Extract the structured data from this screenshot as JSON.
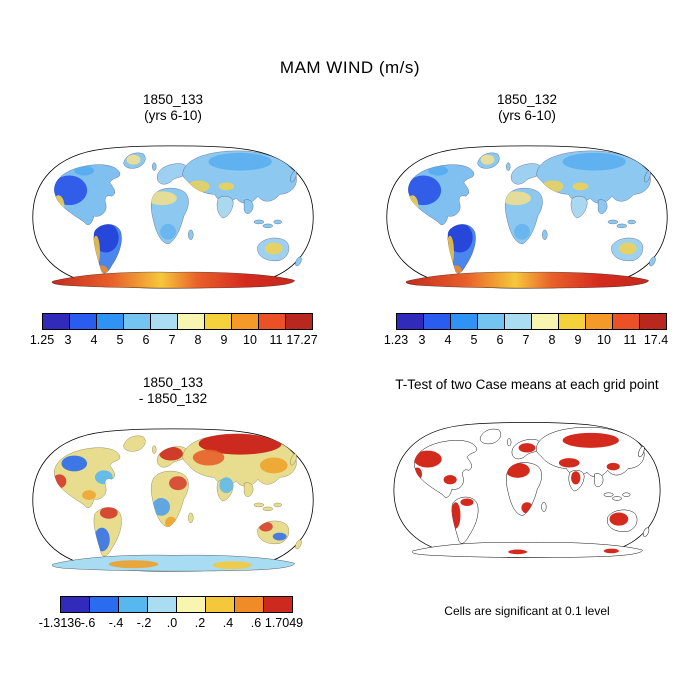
{
  "title": "MAM WIND (m/s)",
  "panels": {
    "case1": {
      "title_line1": "1850_133",
      "title_line2": "(yrs 6-10)"
    },
    "case2": {
      "title_line1": "1850_132",
      "title_line2": "(yrs 6-10)"
    },
    "diff": {
      "title_line1": "1850_133",
      "title_line2": "- 1850_132"
    },
    "ttest": {
      "title": "T-Test of two Case means at each grid point",
      "caption": "Cells are significant at 0.1 level"
    }
  },
  "colorbars": {
    "case1": {
      "colors": [
        "#312aba",
        "#2a5cf0",
        "#2e93f5",
        "#74c4f2",
        "#aadcf2",
        "#f7f5b0",
        "#f5d23c",
        "#f59a28",
        "#eb5026",
        "#b8281e"
      ],
      "labels": [
        "1.25",
        "3",
        "4",
        "5",
        "6",
        "7",
        "8",
        "9",
        "10",
        "11",
        "17.27"
      ]
    },
    "case2": {
      "colors": [
        "#312aba",
        "#2a5cf0",
        "#2e93f5",
        "#74c4f2",
        "#aadcf2",
        "#f7f5b0",
        "#f5d23c",
        "#f59a28",
        "#eb5026",
        "#b8281e"
      ],
      "labels": [
        "1.23",
        "3",
        "4",
        "5",
        "6",
        "7",
        "8",
        "9",
        "10",
        "11",
        "17.4"
      ]
    },
    "diff": {
      "colors": [
        "#312aba",
        "#2a6cf0",
        "#57b8f0",
        "#aadcf2",
        "#f7f5b0",
        "#f5c83c",
        "#f08c28",
        "#cc2a1e"
      ],
      "labels": [
        "-1.3136",
        "-.6",
        "-.4",
        "-.2",
        ".0",
        ".2",
        ".4",
        ".6",
        "1.7049"
      ]
    }
  },
  "chart_data": [
    {
      "type": "heatmap",
      "subtype": "global-map",
      "projection": "robinson",
      "title": "1850_133 (yrs 6-10)",
      "variable": "MAM WIND",
      "units": "m/s",
      "min": 1.25,
      "max": 17.27,
      "levels": [
        3,
        4,
        5,
        6,
        7,
        8,
        9,
        10,
        11
      ],
      "palette": [
        "#312aba",
        "#2a5cf0",
        "#2e93f5",
        "#74c4f2",
        "#aadcf2",
        "#f7f5b0",
        "#f5d23c",
        "#f59a28",
        "#eb5026",
        "#b8281e"
      ],
      "legend_position": "bottom"
    },
    {
      "type": "heatmap",
      "subtype": "global-map",
      "projection": "robinson",
      "title": "1850_132 (yrs 6-10)",
      "variable": "MAM WIND",
      "units": "m/s",
      "min": 1.23,
      "max": 17.4,
      "levels": [
        3,
        4,
        5,
        6,
        7,
        8,
        9,
        10,
        11
      ],
      "palette": [
        "#312aba",
        "#2a5cf0",
        "#2e93f5",
        "#74c4f2",
        "#aadcf2",
        "#f7f5b0",
        "#f5d23c",
        "#f59a28",
        "#eb5026",
        "#b8281e"
      ],
      "legend_position": "bottom"
    },
    {
      "type": "heatmap",
      "subtype": "global-map",
      "projection": "robinson",
      "title": "1850_133 - 1850_132",
      "variable": "MAM WIND difference",
      "units": "m/s",
      "min": -1.3136,
      "max": 1.7049,
      "levels": [
        -0.6,
        -0.4,
        -0.2,
        0,
        0.2,
        0.4,
        0.6
      ],
      "palette": [
        "#312aba",
        "#2a6cf0",
        "#57b8f0",
        "#aadcf2",
        "#f7f5b0",
        "#f5c83c",
        "#f08c28",
        "#cc2a1e"
      ],
      "legend_position": "bottom"
    },
    {
      "type": "heatmap",
      "subtype": "significance-mask-map",
      "projection": "robinson",
      "title": "T-Test of two Case means at each grid point",
      "note": "Cells are significant at 0.1 level",
      "significance_level": 0.1,
      "significant_color": "#d42a1e"
    }
  ]
}
